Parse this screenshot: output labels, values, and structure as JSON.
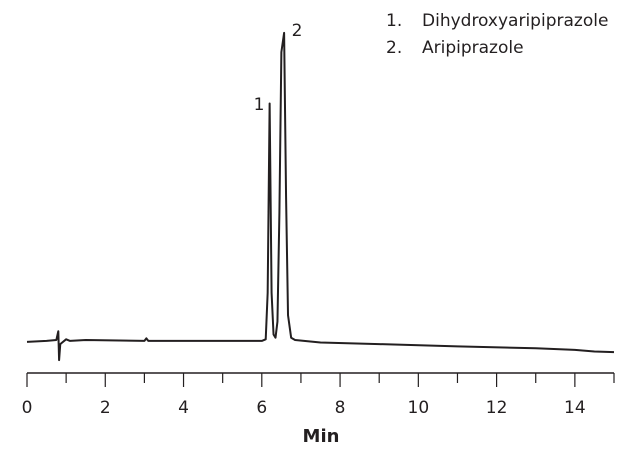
{
  "chart_data": {
    "type": "line",
    "x_label": "Min",
    "xlim": [
      0,
      15
    ],
    "xticks": [
      0,
      2,
      4,
      6,
      8,
      10,
      12,
      14
    ],
    "xminor_ticks": [
      1,
      3,
      5,
      7,
      9,
      11,
      13,
      15
    ],
    "ylim": [
      -10,
      100
    ],
    "series": [
      {
        "color": "#231f20",
        "x": [
          0,
          0.5,
          0.75,
          0.8,
          0.82,
          0.85,
          0.9,
          1.0,
          1.1,
          1.5,
          3,
          3.05,
          3.1,
          5,
          6.0,
          6.1,
          6.15,
          6.2,
          6.25,
          6.3,
          6.35,
          6.4,
          6.45,
          6.5,
          6.57,
          6.62,
          6.67,
          6.75,
          6.85,
          7.5,
          9,
          11,
          13,
          14,
          14.5,
          15
        ],
        "values": [
          -0.3,
          0,
          0.3,
          3,
          -6,
          -1,
          -0.5,
          0.5,
          0,
          0.3,
          0,
          0.8,
          0,
          0,
          0,
          0.5,
          15,
          74,
          15,
          2,
          1,
          6,
          40,
          90,
          96,
          45,
          8,
          1,
          0.3,
          -0.5,
          -1,
          -1.7,
          -2.3,
          -2.8,
          -3.3,
          -3.5
        ]
      }
    ],
    "annotations": [
      "1",
      "2"
    ],
    "legend": [
      {
        "number": "1.",
        "name": "Dihydroxyaripiprazole"
      },
      {
        "number": "2.",
        "name": "Aripiprazole"
      }
    ]
  }
}
